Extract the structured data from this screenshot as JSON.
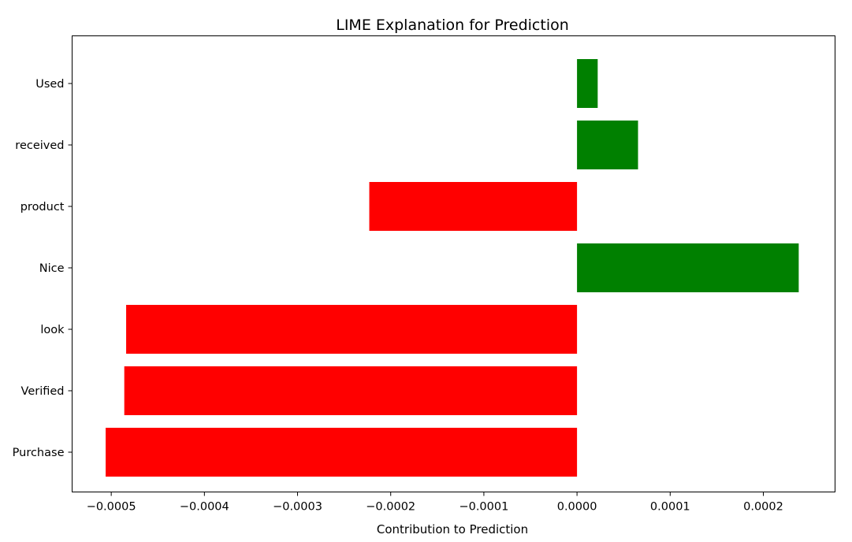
{
  "chart_data": {
    "type": "bar",
    "orientation": "horizontal",
    "title": "LIME Explanation for Prediction",
    "xlabel": "Contribution to Prediction",
    "ylabel": "",
    "categories": [
      "Used",
      "received",
      "product",
      "Nice",
      "look",
      "Verified",
      "Purchase"
    ],
    "values": [
      2.22e-05,
      6.55e-05,
      -0.000223,
      0.000238,
      -0.000484,
      -0.000486,
      -0.000506
    ],
    "xlim": [
      -0.000542,
      0.000277
    ],
    "xticks": [
      -0.0005,
      -0.0004,
      -0.0003,
      -0.0002,
      -0.0001,
      0.0,
      0.0001,
      0.0002
    ],
    "xtick_labels": [
      "−0.0005",
      "−0.0004",
      "−0.0003",
      "−0.0002",
      "−0.0001",
      "0.0000",
      "0.0001",
      "0.0002"
    ],
    "colors": {
      "positive": "#008000",
      "negative": "#ff0000"
    },
    "grid": false,
    "legend": "none"
  }
}
